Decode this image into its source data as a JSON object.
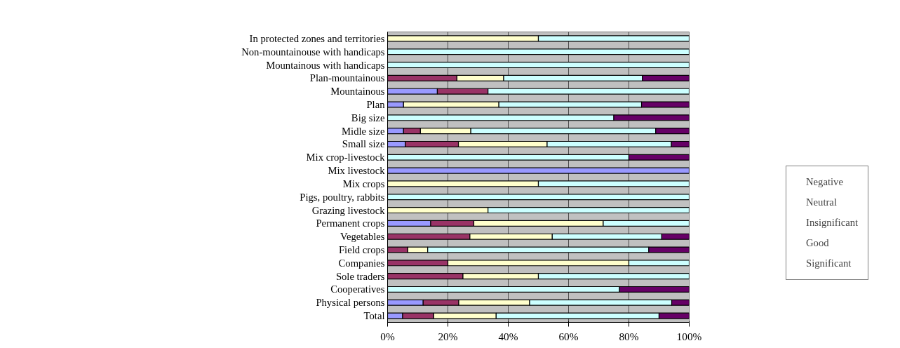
{
  "chart_data": {
    "type": "bar",
    "orientation": "horizontal",
    "stacked": true,
    "categories": [
      "In protected zones and territories",
      "Non-mountainouse with handicaps",
      "Mountainous with handicaps",
      "Plan-mountainous",
      "Mountainous",
      "Plan",
      "Big size",
      "Midle size",
      "Small size",
      "Mix crop-livestock",
      "Mix livestock",
      "Mix crops",
      "Pigs, poultry, rabbits",
      "Grazing livestock",
      "Permanent crops",
      "Vegetables",
      "Field crops",
      "Companies",
      "Sole traders",
      "Cooperatives",
      "Physical persons",
      "Total"
    ],
    "series": [
      {
        "name": "Negative",
        "color": "#9999ff",
        "values": [
          null,
          null,
          null,
          null,
          16.5,
          5.3,
          null,
          5.3,
          5.9,
          null,
          100,
          null,
          null,
          null,
          14.3,
          null,
          null,
          null,
          null,
          null,
          11.8,
          5
        ]
      },
      {
        "name": "Neutral",
        "color": "#993366",
        "values": [
          null,
          null,
          null,
          23,
          16.8,
          null,
          null,
          5.6,
          17.6,
          null,
          null,
          null,
          null,
          null,
          14.3,
          27.3,
          6.7,
          20,
          25,
          null,
          11.8,
          10.3
        ]
      },
      {
        "name": "Insignificant",
        "color": "#ffffcc",
        "values": [
          50,
          null,
          null,
          15.5,
          null,
          31.6,
          null,
          16.7,
          29.4,
          null,
          null,
          50,
          null,
          33.3,
          42.9,
          27.3,
          6.6,
          60,
          25,
          null,
          23.5,
          20.7
        ]
      },
      {
        "name": "Good",
        "color": "#ccffff",
        "values": [
          50,
          100,
          100,
          46,
          66.7,
          47.3,
          75,
          61.3,
          41.2,
          80,
          null,
          50,
          100,
          66.7,
          28.5,
          36.3,
          73.3,
          20,
          50,
          76.9,
          47.1,
          54
        ]
      },
      {
        "name": "Significant",
        "color": "#660066",
        "values": [
          null,
          null,
          null,
          15.5,
          null,
          15.8,
          25,
          11.1,
          5.9,
          20,
          null,
          null,
          null,
          null,
          null,
          9.1,
          13.4,
          null,
          null,
          23.1,
          5.8,
          10
        ]
      }
    ],
    "xlim": [
      0,
      100
    ],
    "xticks": [
      {
        "value": 0,
        "label": "0%"
      },
      {
        "value": 20,
        "label": "20%"
      },
      {
        "value": 40,
        "label": "40%"
      },
      {
        "value": 60,
        "label": "60%"
      },
      {
        "value": 80,
        "label": "80%"
      },
      {
        "value": 100,
        "label": "100%"
      }
    ],
    "grid": "x",
    "legend": "right"
  }
}
